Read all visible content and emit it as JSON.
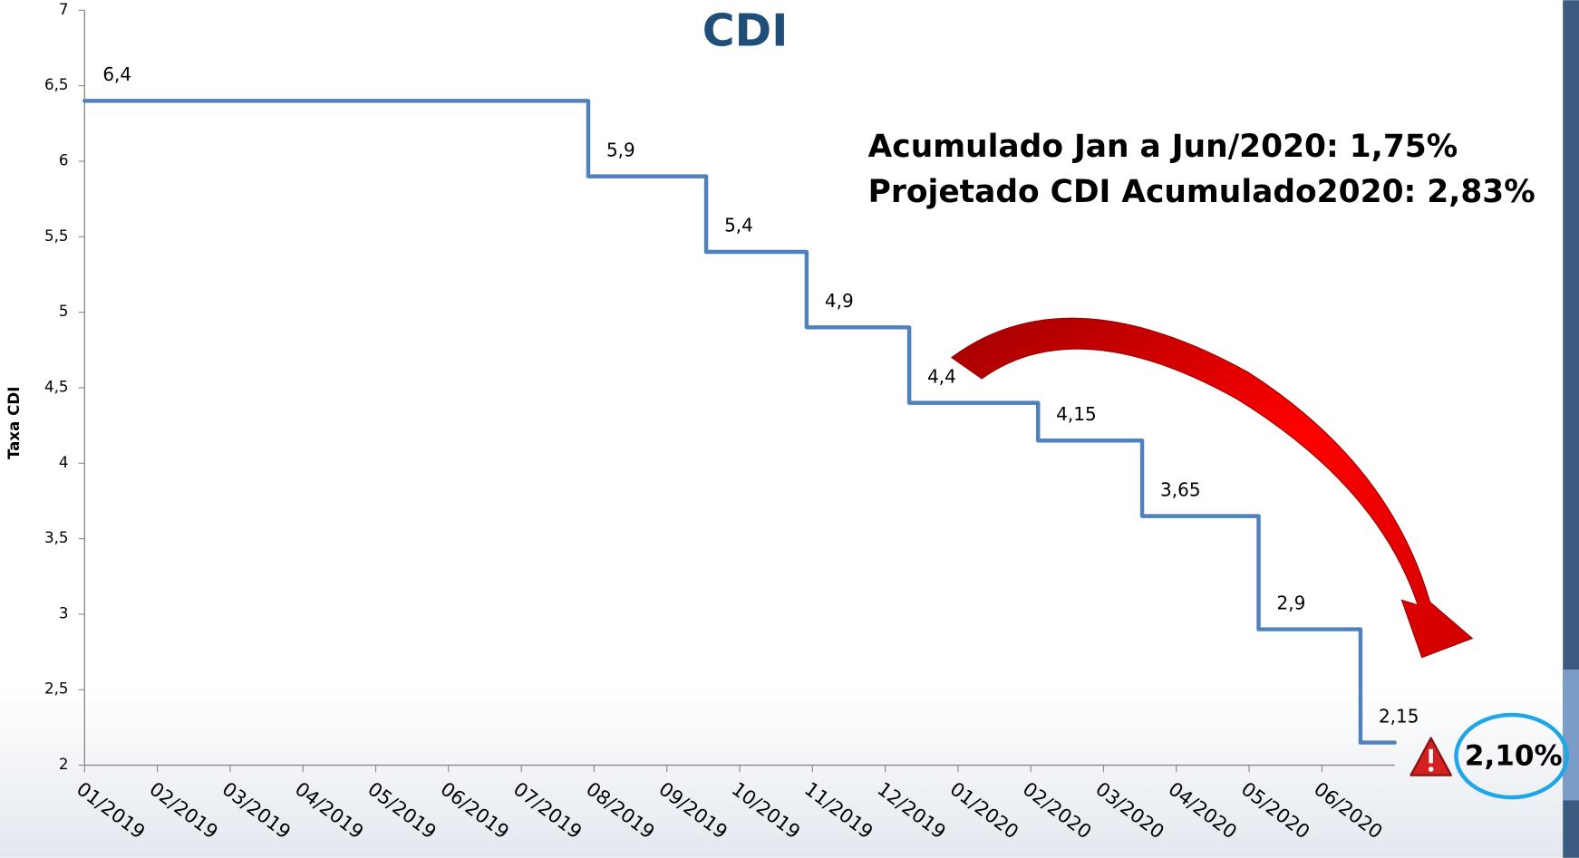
{
  "chart_data": {
    "type": "step",
    "title": "CDI",
    "y_label": "Taxa CDI",
    "annotations": [
      "Acumulado Jan a Jun/2020: 1,75%",
      "Projetado CDI Acumulado2020: 2,83%",
      "2,10%"
    ],
    "x": [
      0,
      6.92,
      8.54,
      9.92,
      11.33,
      13.1,
      14.53,
      16.13,
      17.53
    ],
    "values": [
      6.4,
      5.9,
      5.4,
      4.9,
      4.4,
      4.15,
      3.65,
      2.9,
      2.15
    ],
    "value_labels": [
      "6,4",
      "5,9",
      "5,4",
      "4,9",
      "4,4",
      "4,15",
      "3,65",
      "2,9",
      "2,15"
    ],
    "color": "#4f81bd",
    "xlim": [
      0,
      18
    ],
    "xticks": [
      {
        "value": 0,
        "label": "01/2019"
      },
      {
        "value": 1,
        "label": "02/2019"
      },
      {
        "value": 2,
        "label": "03/2019"
      },
      {
        "value": 3,
        "label": "04/2019"
      },
      {
        "value": 4,
        "label": "05/2019"
      },
      {
        "value": 5,
        "label": "06/2019"
      },
      {
        "value": 6,
        "label": "07/2019"
      },
      {
        "value": 7,
        "label": "08/2019"
      },
      {
        "value": 8,
        "label": "09/2019"
      },
      {
        "value": 9,
        "label": "10/2019"
      },
      {
        "value": 10,
        "label": "11/2019"
      },
      {
        "value": 11,
        "label": "12/2019"
      },
      {
        "value": 12,
        "label": "01/2020"
      },
      {
        "value": 13,
        "label": "02/2020"
      },
      {
        "value": 14,
        "label": "03/2020"
      },
      {
        "value": 15,
        "label": "04/2020"
      },
      {
        "value": 16,
        "label": "05/2020"
      },
      {
        "value": 17,
        "label": "06/2020"
      }
    ],
    "ylim": [
      2,
      7
    ],
    "yticks": [
      2,
      {
        "value": 2.5,
        "label": "2,5"
      },
      3,
      {
        "value": 3.5,
        "label": "3,5"
      },
      4,
      {
        "value": 4.5,
        "label": "4,5"
      },
      5,
      {
        "value": 5.5,
        "label": "5,5"
      },
      6,
      {
        "value": 6.5,
        "label": "6,5"
      },
      7
    ]
  }
}
